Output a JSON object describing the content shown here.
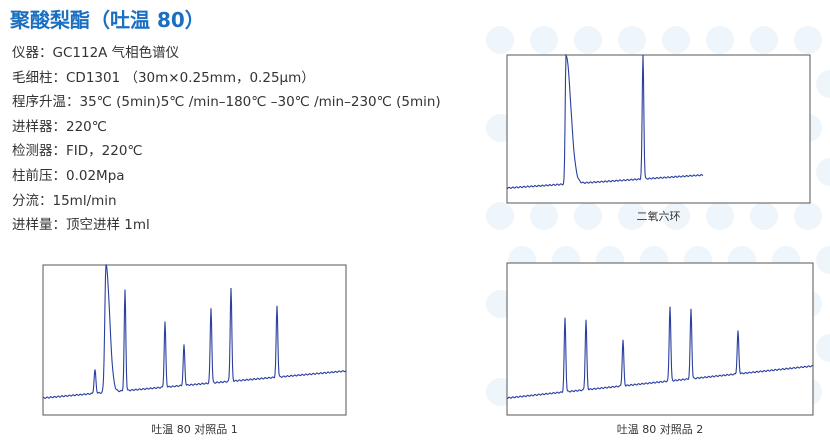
{
  "header": {
    "title": "聚酸梨酯（吐温 80）"
  },
  "specs": [
    {
      "label": "仪器：",
      "value": "GC112A 气相色谱仪"
    },
    {
      "label": "毛细柱：",
      "value": "CD1301 （30m×0.25mm，0.25μm）"
    },
    {
      "label": "程序升温：",
      "value": "35℃ (5min)5℃ /min–180℃ –30℃ /min–230℃ (5min)"
    },
    {
      "label": "进样器：",
      "value": "220℃"
    },
    {
      "label": "检测器：",
      "value": "FID，220℃"
    },
    {
      "label": "柱前压：",
      "value": "0.02Mpa"
    },
    {
      "label": "分流：",
      "value": "15ml/min"
    },
    {
      "label": "进样量：",
      "value": "顶空进样 1ml"
    }
  ],
  "figures": [
    {
      "caption": "二氧六环"
    },
    {
      "caption": "吐温 80 对照品 1"
    },
    {
      "caption": "吐温 80 对照品 2"
    }
  ]
}
